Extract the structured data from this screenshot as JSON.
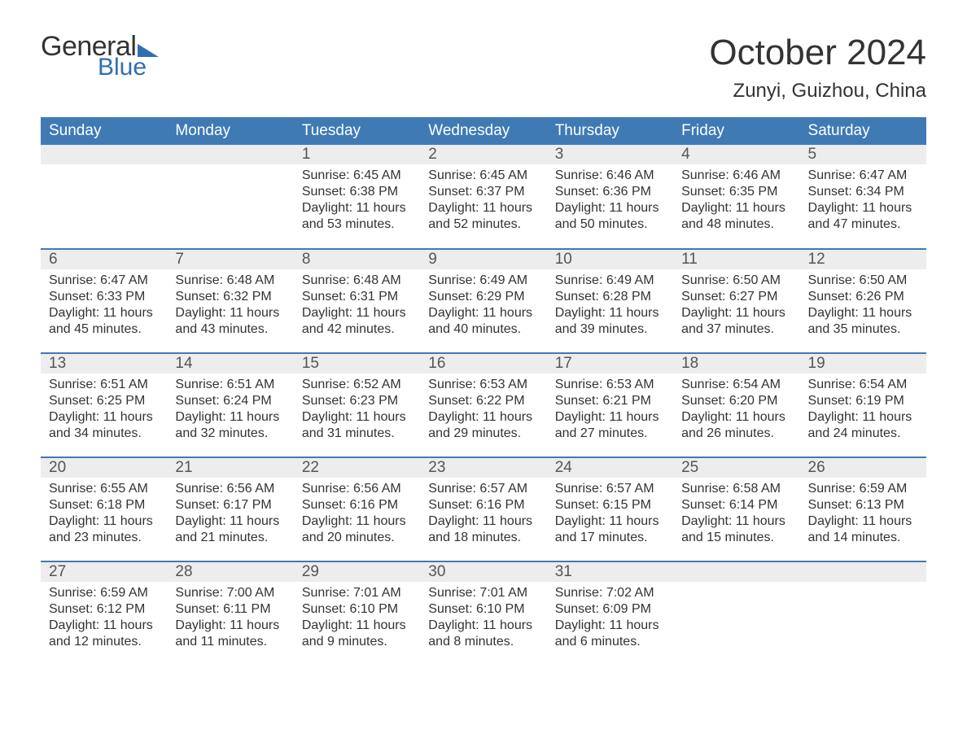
{
  "logo": {
    "general": "General",
    "blue": "Blue"
  },
  "title": "October 2024",
  "subtitle": "Zunyi, Guizhou, China",
  "colors": {
    "header_bg": "#3f7ab5",
    "header_text": "#ffffff",
    "daynum_bg": "#ededed",
    "rule": "#3f7ab5",
    "logo_blue": "#2f6fb0",
    "text": "#333333"
  },
  "weekdays": [
    "Sunday",
    "Monday",
    "Tuesday",
    "Wednesday",
    "Thursday",
    "Friday",
    "Saturday"
  ],
  "weeks": [
    [
      {
        "day": "",
        "sunrise": "",
        "sunset": "",
        "daylight": ""
      },
      {
        "day": "",
        "sunrise": "",
        "sunset": "",
        "daylight": ""
      },
      {
        "day": "1",
        "sunrise": "Sunrise: 6:45 AM",
        "sunset": "Sunset: 6:38 PM",
        "daylight": "Daylight: 11 hours and 53 minutes."
      },
      {
        "day": "2",
        "sunrise": "Sunrise: 6:45 AM",
        "sunset": "Sunset: 6:37 PM",
        "daylight": "Daylight: 11 hours and 52 minutes."
      },
      {
        "day": "3",
        "sunrise": "Sunrise: 6:46 AM",
        "sunset": "Sunset: 6:36 PM",
        "daylight": "Daylight: 11 hours and 50 minutes."
      },
      {
        "day": "4",
        "sunrise": "Sunrise: 6:46 AM",
        "sunset": "Sunset: 6:35 PM",
        "daylight": "Daylight: 11 hours and 48 minutes."
      },
      {
        "day": "5",
        "sunrise": "Sunrise: 6:47 AM",
        "sunset": "Sunset: 6:34 PM",
        "daylight": "Daylight: 11 hours and 47 minutes."
      }
    ],
    [
      {
        "day": "6",
        "sunrise": "Sunrise: 6:47 AM",
        "sunset": "Sunset: 6:33 PM",
        "daylight": "Daylight: 11 hours and 45 minutes."
      },
      {
        "day": "7",
        "sunrise": "Sunrise: 6:48 AM",
        "sunset": "Sunset: 6:32 PM",
        "daylight": "Daylight: 11 hours and 43 minutes."
      },
      {
        "day": "8",
        "sunrise": "Sunrise: 6:48 AM",
        "sunset": "Sunset: 6:31 PM",
        "daylight": "Daylight: 11 hours and 42 minutes."
      },
      {
        "day": "9",
        "sunrise": "Sunrise: 6:49 AM",
        "sunset": "Sunset: 6:29 PM",
        "daylight": "Daylight: 11 hours and 40 minutes."
      },
      {
        "day": "10",
        "sunrise": "Sunrise: 6:49 AM",
        "sunset": "Sunset: 6:28 PM",
        "daylight": "Daylight: 11 hours and 39 minutes."
      },
      {
        "day": "11",
        "sunrise": "Sunrise: 6:50 AM",
        "sunset": "Sunset: 6:27 PM",
        "daylight": "Daylight: 11 hours and 37 minutes."
      },
      {
        "day": "12",
        "sunrise": "Sunrise: 6:50 AM",
        "sunset": "Sunset: 6:26 PM",
        "daylight": "Daylight: 11 hours and 35 minutes."
      }
    ],
    [
      {
        "day": "13",
        "sunrise": "Sunrise: 6:51 AM",
        "sunset": "Sunset: 6:25 PM",
        "daylight": "Daylight: 11 hours and 34 minutes."
      },
      {
        "day": "14",
        "sunrise": "Sunrise: 6:51 AM",
        "sunset": "Sunset: 6:24 PM",
        "daylight": "Daylight: 11 hours and 32 minutes."
      },
      {
        "day": "15",
        "sunrise": "Sunrise: 6:52 AM",
        "sunset": "Sunset: 6:23 PM",
        "daylight": "Daylight: 11 hours and 31 minutes."
      },
      {
        "day": "16",
        "sunrise": "Sunrise: 6:53 AM",
        "sunset": "Sunset: 6:22 PM",
        "daylight": "Daylight: 11 hours and 29 minutes."
      },
      {
        "day": "17",
        "sunrise": "Sunrise: 6:53 AM",
        "sunset": "Sunset: 6:21 PM",
        "daylight": "Daylight: 11 hours and 27 minutes."
      },
      {
        "day": "18",
        "sunrise": "Sunrise: 6:54 AM",
        "sunset": "Sunset: 6:20 PM",
        "daylight": "Daylight: 11 hours and 26 minutes."
      },
      {
        "day": "19",
        "sunrise": "Sunrise: 6:54 AM",
        "sunset": "Sunset: 6:19 PM",
        "daylight": "Daylight: 11 hours and 24 minutes."
      }
    ],
    [
      {
        "day": "20",
        "sunrise": "Sunrise: 6:55 AM",
        "sunset": "Sunset: 6:18 PM",
        "daylight": "Daylight: 11 hours and 23 minutes."
      },
      {
        "day": "21",
        "sunrise": "Sunrise: 6:56 AM",
        "sunset": "Sunset: 6:17 PM",
        "daylight": "Daylight: 11 hours and 21 minutes."
      },
      {
        "day": "22",
        "sunrise": "Sunrise: 6:56 AM",
        "sunset": "Sunset: 6:16 PM",
        "daylight": "Daylight: 11 hours and 20 minutes."
      },
      {
        "day": "23",
        "sunrise": "Sunrise: 6:57 AM",
        "sunset": "Sunset: 6:16 PM",
        "daylight": "Daylight: 11 hours and 18 minutes."
      },
      {
        "day": "24",
        "sunrise": "Sunrise: 6:57 AM",
        "sunset": "Sunset: 6:15 PM",
        "daylight": "Daylight: 11 hours and 17 minutes."
      },
      {
        "day": "25",
        "sunrise": "Sunrise: 6:58 AM",
        "sunset": "Sunset: 6:14 PM",
        "daylight": "Daylight: 11 hours and 15 minutes."
      },
      {
        "day": "26",
        "sunrise": "Sunrise: 6:59 AM",
        "sunset": "Sunset: 6:13 PM",
        "daylight": "Daylight: 11 hours and 14 minutes."
      }
    ],
    [
      {
        "day": "27",
        "sunrise": "Sunrise: 6:59 AM",
        "sunset": "Sunset: 6:12 PM",
        "daylight": "Daylight: 11 hours and 12 minutes."
      },
      {
        "day": "28",
        "sunrise": "Sunrise: 7:00 AM",
        "sunset": "Sunset: 6:11 PM",
        "daylight": "Daylight: 11 hours and 11 minutes."
      },
      {
        "day": "29",
        "sunrise": "Sunrise: 7:01 AM",
        "sunset": "Sunset: 6:10 PM",
        "daylight": "Daylight: 11 hours and 9 minutes."
      },
      {
        "day": "30",
        "sunrise": "Sunrise: 7:01 AM",
        "sunset": "Sunset: 6:10 PM",
        "daylight": "Daylight: 11 hours and 8 minutes."
      },
      {
        "day": "31",
        "sunrise": "Sunrise: 7:02 AM",
        "sunset": "Sunset: 6:09 PM",
        "daylight": "Daylight: 11 hours and 6 minutes."
      },
      {
        "day": "",
        "sunrise": "",
        "sunset": "",
        "daylight": ""
      },
      {
        "day": "",
        "sunrise": "",
        "sunset": "",
        "daylight": ""
      }
    ]
  ]
}
